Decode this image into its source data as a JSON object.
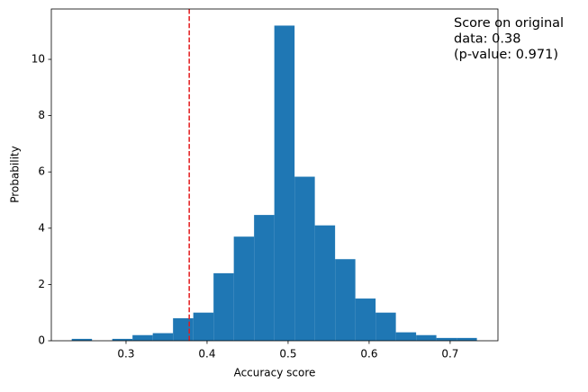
{
  "chart_data": {
    "type": "histogram",
    "xlabel": "Accuracy score",
    "ylabel": "Probability",
    "bins": [
      0.233,
      0.258,
      0.283,
      0.308,
      0.333,
      0.358,
      0.383,
      0.408,
      0.433,
      0.458,
      0.483,
      0.508,
      0.533,
      0.558,
      0.583,
      0.608,
      0.633,
      0.658,
      0.683,
      0.708,
      0.733
    ],
    "values": [
      0.067,
      0,
      0.067,
      0.2,
      0.27,
      0.8,
      1.0,
      2.4,
      3.7,
      4.47,
      11.2,
      5.83,
      4.1,
      2.9,
      1.5,
      1.0,
      0.3,
      0.2,
      0.1,
      0.1
    ],
    "color": "#1f77b4",
    "vline": {
      "value": 0.378,
      "color": "#e31a1c"
    },
    "annotation": [
      "Score on original",
      "data: 0.38",
      "(p-value: 0.971)"
    ],
    "xlim": [
      0.2078,
      0.759
    ],
    "ylim": [
      0,
      11.79
    ],
    "xticks": [
      0.3,
      0.4,
      0.5,
      0.6,
      0.7
    ],
    "yticks": [
      0,
      2,
      4,
      6,
      8,
      10
    ],
    "grid": false
  }
}
